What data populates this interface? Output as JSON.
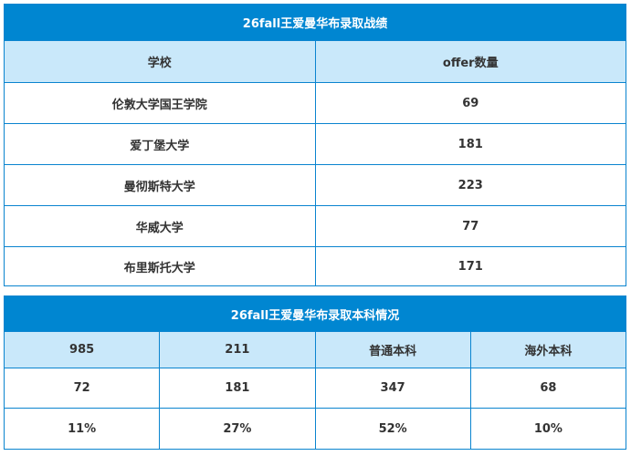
{
  "offer_table": {
    "title": "26fall王爱曼华布录取战绩",
    "headers": [
      "学校",
      "offer数量"
    ],
    "rows": [
      [
        "伦敦大学国王学院",
        "69"
      ],
      [
        "爱丁堡大学",
        "181"
      ],
      [
        "曼彻斯特大学",
        "223"
      ],
      [
        "华威大学",
        "77"
      ],
      [
        "布里斯托大学",
        "171"
      ]
    ]
  },
  "background_table": {
    "title": "26fall王爱曼华布录取本科情况",
    "headers": [
      "985",
      "211",
      "普通本科",
      "海外本科"
    ],
    "counts": [
      "72",
      "181",
      "347",
      "68"
    ],
    "percents": [
      "11%",
      "27%",
      "52%",
      "10%"
    ]
  },
  "colors": {
    "title_bg": "#0086d1",
    "header_bg": "#c9e8fa",
    "border": "#0a84cf"
  }
}
